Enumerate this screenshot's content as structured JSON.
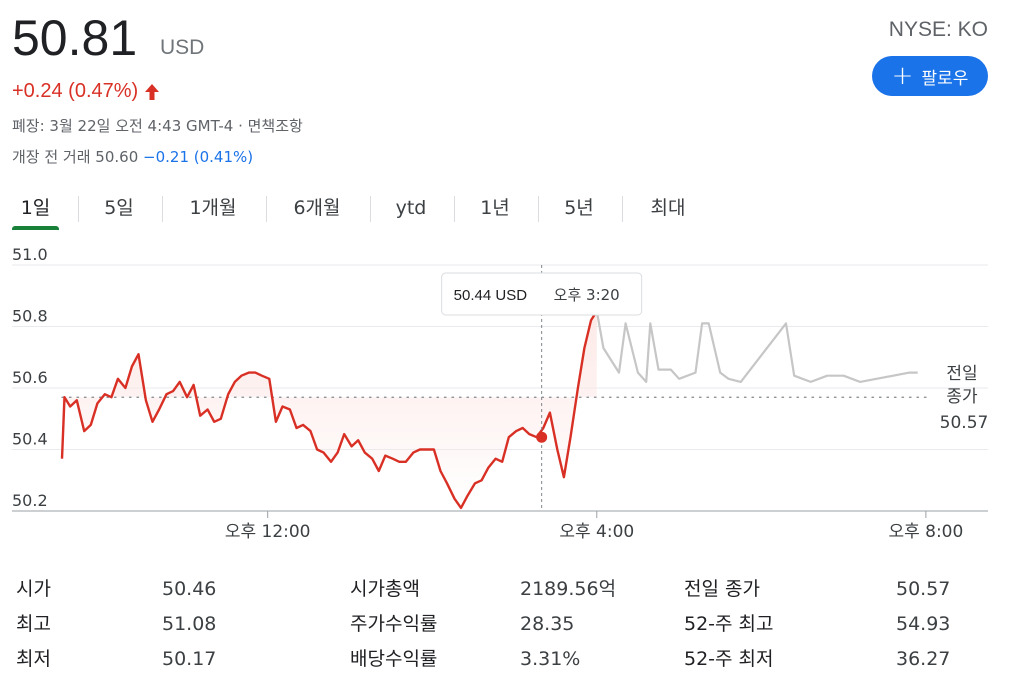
{
  "quote": {
    "price": "50.81",
    "currency": "USD",
    "ticker": "NYSE: KO",
    "change": "+0.24 (0.47%)",
    "change_arrow": "🡑",
    "closed_info": "폐장: 3월 22일 오전 4:43 GMT-4 · 면책조항",
    "premarket_label": "개장 전 거래 50.60",
    "premarket_change": "−0.21 (0.41%)"
  },
  "follow_button": {
    "icon": "plus-icon",
    "label": "팔로우"
  },
  "tabs": [
    {
      "label": "1일",
      "active": true
    },
    {
      "label": "5일"
    },
    {
      "label": "1개월"
    },
    {
      "label": "6개월"
    },
    {
      "label": "ytd"
    },
    {
      "label": "1년"
    },
    {
      "label": "5년"
    },
    {
      "label": "최대"
    }
  ],
  "chart_data": {
    "type": "line",
    "ylim": [
      50.2,
      51.0
    ],
    "y_ticks": [
      "51.0",
      "50.8",
      "50.6",
      "50.4",
      "50.2"
    ],
    "x_ticks": [
      {
        "label": "오후 12:00",
        "x": 12
      },
      {
        "label": "오후 4:00",
        "x": 16
      },
      {
        "label": "오후 8:00",
        "x": 20
      }
    ],
    "xlim": [
      9.5,
      20.05
    ],
    "previous_close": 50.57,
    "previous_close_label": [
      "전일",
      "종가",
      "50.57"
    ],
    "tooltip": {
      "price": "50.44 USD",
      "time": "오후 3:20",
      "x": 15.33,
      "y": 50.44
    },
    "colors": {
      "regular": "#d93025",
      "after_hours": "#c6c6c6",
      "fill": "#fce8e6"
    },
    "series": [
      {
        "segment": "regular",
        "x": [
          9.5,
          9.53,
          9.6,
          9.68,
          9.77,
          9.85,
          9.93,
          10.02,
          10.1,
          10.18,
          10.27,
          10.35,
          10.43,
          10.52,
          10.6,
          10.68,
          10.77,
          10.85,
          10.93,
          11.02,
          11.1,
          11.18,
          11.27,
          11.35,
          11.43,
          11.52,
          11.6,
          11.68,
          11.77,
          11.85,
          11.93,
          12.02,
          12.1,
          12.18,
          12.27,
          12.35,
          12.43,
          12.52,
          12.6,
          12.68,
          12.77,
          12.85,
          12.93,
          13.02,
          13.1,
          13.18,
          13.27,
          13.35,
          13.43,
          13.52,
          13.6,
          13.68,
          13.77,
          13.85,
          13.93,
          14.02,
          14.1,
          14.18,
          14.27,
          14.35,
          14.43,
          14.52,
          14.6,
          14.68,
          14.77,
          14.85,
          14.93,
          15.02,
          15.1,
          15.18,
          15.27,
          15.35,
          15.43,
          15.52,
          15.6,
          15.68,
          15.77,
          15.85,
          15.93,
          16.0
        ],
        "y": [
          50.37,
          50.57,
          50.54,
          50.56,
          50.46,
          50.48,
          50.55,
          50.58,
          50.57,
          50.63,
          50.6,
          50.67,
          50.71,
          50.56,
          50.49,
          50.53,
          50.58,
          50.59,
          50.62,
          50.57,
          50.61,
          50.51,
          50.53,
          50.49,
          50.5,
          50.58,
          50.62,
          50.64,
          50.65,
          50.65,
          50.64,
          50.63,
          50.49,
          50.54,
          50.53,
          50.47,
          50.48,
          50.46,
          50.4,
          50.39,
          50.36,
          50.39,
          50.45,
          50.41,
          50.43,
          50.39,
          50.37,
          50.33,
          50.38,
          50.37,
          50.36,
          50.36,
          50.39,
          50.4,
          50.4,
          50.4,
          50.33,
          50.29,
          50.24,
          50.21,
          50.25,
          50.29,
          50.3,
          50.34,
          50.37,
          50.36,
          50.44,
          50.46,
          50.47,
          50.45,
          50.44,
          50.47,
          50.52,
          50.4,
          50.31,
          50.44,
          50.6,
          50.73,
          50.82,
          50.85
        ]
      },
      {
        "segment": "after_hours",
        "x": [
          16.0,
          16.08,
          16.27,
          16.35,
          16.5,
          16.6,
          16.65,
          16.75,
          16.9,
          17.0,
          17.2,
          17.28,
          17.36,
          17.5,
          17.6,
          17.75,
          18.3,
          18.4,
          18.6,
          18.8,
          19.0,
          19.2,
          19.4,
          19.8,
          19.9
        ],
        "y": [
          50.85,
          50.73,
          50.65,
          50.81,
          50.65,
          50.62,
          50.81,
          50.66,
          50.66,
          50.63,
          50.65,
          50.81,
          50.81,
          50.65,
          50.63,
          50.62,
          50.81,
          50.64,
          50.62,
          50.64,
          50.64,
          50.62,
          50.63,
          50.65,
          50.65
        ]
      }
    ]
  },
  "stats": [
    [
      {
        "label": "시가",
        "value": "50.46"
      },
      {
        "label": "시가총액",
        "value": "2189.56억"
      },
      {
        "label": "전일 종가",
        "value": "50.57"
      }
    ],
    [
      {
        "label": "최고",
        "value": "51.08"
      },
      {
        "label": "주가수익률",
        "value": "28.35"
      },
      {
        "label": "52-주 최고",
        "value": "54.93"
      }
    ],
    [
      {
        "label": "최저",
        "value": "50.17"
      },
      {
        "label": "배당수익률",
        "value": "3.31%"
      },
      {
        "label": "52-주 최저",
        "value": "36.27"
      }
    ]
  ]
}
